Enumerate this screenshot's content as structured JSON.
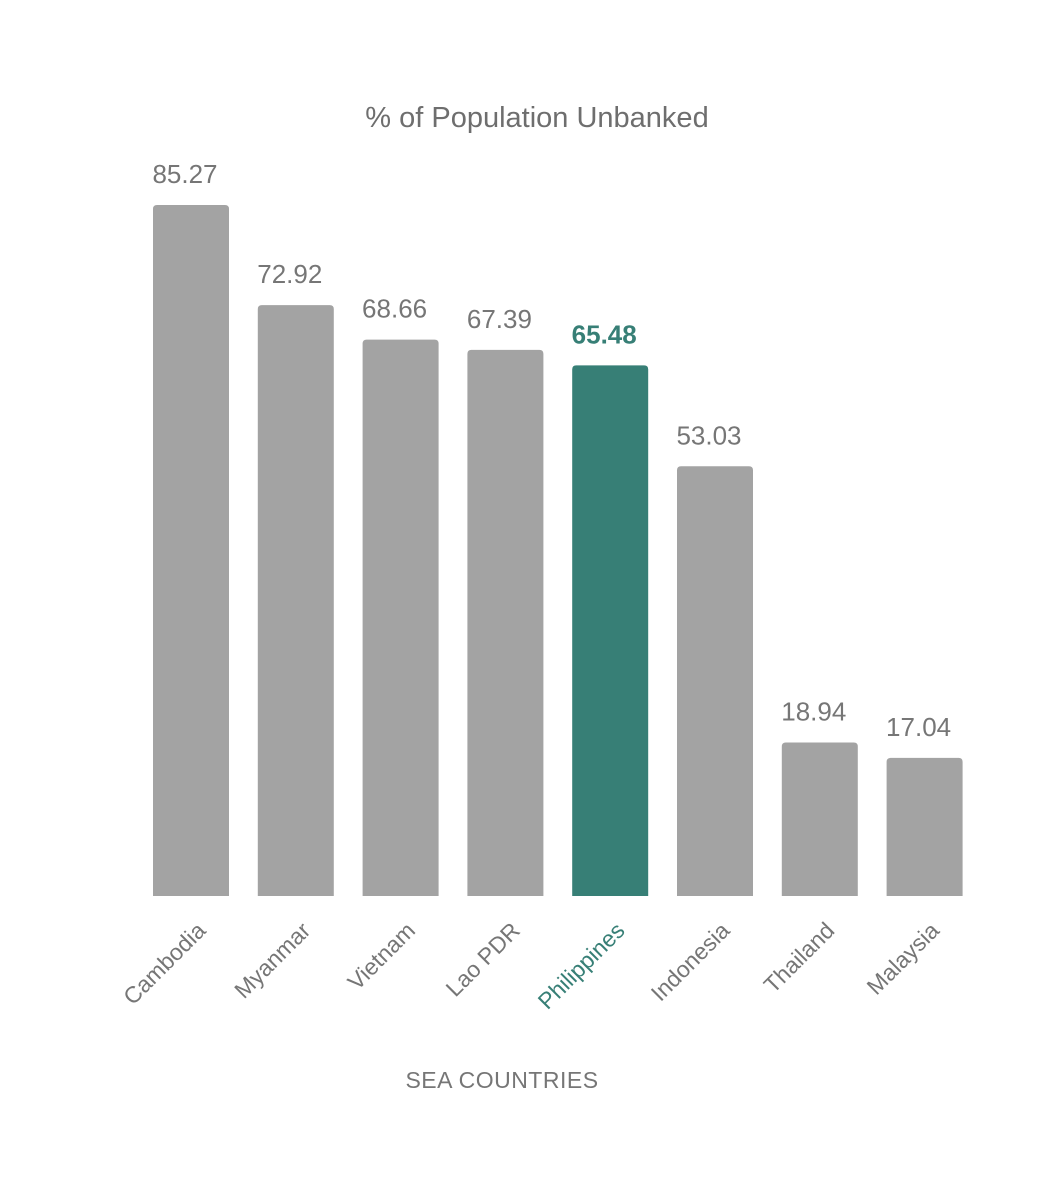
{
  "chart_data": {
    "type": "bar",
    "title": "% of Population Unbanked",
    "xlabel": "SEA COUNTRIES",
    "ylabel": "",
    "categories": [
      "Cambodia",
      "Myanmar",
      "Vietnam",
      "Lao PDR",
      "Philippines",
      "Indonesia",
      "Thailand",
      "Malaysia"
    ],
    "values": [
      85.27,
      72.92,
      68.66,
      67.39,
      65.48,
      53.03,
      18.94,
      17.04
    ],
    "value_labels": [
      "85.27",
      "72.92",
      "68.66",
      "67.39",
      "65.48",
      "53.03",
      "18.94",
      "17.04"
    ],
    "highlight": "Philippines",
    "ylim": [
      0,
      85.27
    ],
    "grid": false,
    "legend": "none",
    "colors": {
      "bar": "#a3a3a3",
      "highlight": "#377f76",
      "text": "#767676"
    }
  }
}
